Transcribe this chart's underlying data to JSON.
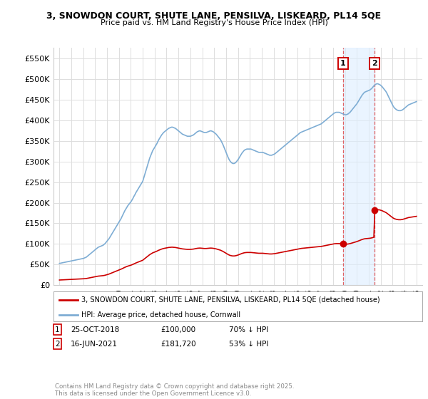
{
  "title_line1": "3, SNOWDON COURT, SHUTE LANE, PENSILVA, LISKEARD, PL14 5QE",
  "title_line2": "Price paid vs. HM Land Registry's House Price Index (HPI)",
  "background_color": "#ffffff",
  "plot_bg_color": "#ffffff",
  "grid_color": "#dddddd",
  "ylim": [
    0,
    575000
  ],
  "yticks": [
    0,
    50000,
    100000,
    150000,
    200000,
    250000,
    300000,
    350000,
    400000,
    450000,
    500000,
    550000
  ],
  "ytick_labels": [
    "£0",
    "£50K",
    "£100K",
    "£150K",
    "£200K",
    "£250K",
    "£300K",
    "£350K",
    "£400K",
    "£450K",
    "£500K",
    "£550K"
  ],
  "hpi_color": "#7eadd4",
  "sale_color": "#cc0000",
  "marker_color": "#cc0000",
  "vline_color": "#e06060",
  "vspan_color": "#ddeeff",
  "legend_label_sale": "3, SNOWDON COURT, SHUTE LANE, PENSILVA, LISKEARD, PL14 5QE (detached house)",
  "legend_label_hpi": "HPI: Average price, detached house, Cornwall",
  "sale1_date_num": 2018.82,
  "sale1_price": 100000,
  "sale2_date_num": 2021.46,
  "sale2_price": 181720,
  "copyright": "Contains HM Land Registry data © Crown copyright and database right 2025.\nThis data is licensed under the Open Government Licence v3.0.",
  "hpi_x": [
    1995.0,
    1995.083,
    1995.167,
    1995.25,
    1995.333,
    1995.417,
    1995.5,
    1995.583,
    1995.667,
    1995.75,
    1995.833,
    1995.917,
    1996.0,
    1996.083,
    1996.167,
    1996.25,
    1996.333,
    1996.417,
    1996.5,
    1996.583,
    1996.667,
    1996.75,
    1996.833,
    1996.917,
    1997.0,
    1997.083,
    1997.167,
    1997.25,
    1997.333,
    1997.417,
    1997.5,
    1997.583,
    1997.667,
    1997.75,
    1997.833,
    1997.917,
    1998.0,
    1998.083,
    1998.167,
    1998.25,
    1998.333,
    1998.417,
    1998.5,
    1998.583,
    1998.667,
    1998.75,
    1998.833,
    1998.917,
    1999.0,
    1999.083,
    1999.167,
    1999.25,
    1999.333,
    1999.417,
    1999.5,
    1999.583,
    1999.667,
    1999.75,
    1999.833,
    1999.917,
    2000.0,
    2000.083,
    2000.167,
    2000.25,
    2000.333,
    2000.417,
    2000.5,
    2000.583,
    2000.667,
    2000.75,
    2000.833,
    2000.917,
    2001.0,
    2001.083,
    2001.167,
    2001.25,
    2001.333,
    2001.417,
    2001.5,
    2001.583,
    2001.667,
    2001.75,
    2001.833,
    2001.917,
    2002.0,
    2002.083,
    2002.167,
    2002.25,
    2002.333,
    2002.417,
    2002.5,
    2002.583,
    2002.667,
    2002.75,
    2002.833,
    2002.917,
    2003.0,
    2003.083,
    2003.167,
    2003.25,
    2003.333,
    2003.417,
    2003.5,
    2003.583,
    2003.667,
    2003.75,
    2003.833,
    2003.917,
    2004.0,
    2004.083,
    2004.167,
    2004.25,
    2004.333,
    2004.417,
    2004.5,
    2004.583,
    2004.667,
    2004.75,
    2004.833,
    2004.917,
    2005.0,
    2005.083,
    2005.167,
    2005.25,
    2005.333,
    2005.417,
    2005.5,
    2005.583,
    2005.667,
    2005.75,
    2005.833,
    2005.917,
    2006.0,
    2006.083,
    2006.167,
    2006.25,
    2006.333,
    2006.417,
    2006.5,
    2006.583,
    2006.667,
    2006.75,
    2006.833,
    2006.917,
    2007.0,
    2007.083,
    2007.167,
    2007.25,
    2007.333,
    2007.417,
    2007.5,
    2007.583,
    2007.667,
    2007.75,
    2007.833,
    2007.917,
    2008.0,
    2008.083,
    2008.167,
    2008.25,
    2008.333,
    2008.417,
    2008.5,
    2008.583,
    2008.667,
    2008.75,
    2008.833,
    2008.917,
    2009.0,
    2009.083,
    2009.167,
    2009.25,
    2009.333,
    2009.417,
    2009.5,
    2009.583,
    2009.667,
    2009.75,
    2009.833,
    2009.917,
    2010.0,
    2010.083,
    2010.167,
    2010.25,
    2010.333,
    2010.417,
    2010.5,
    2010.583,
    2010.667,
    2010.75,
    2010.833,
    2010.917,
    2011.0,
    2011.083,
    2011.167,
    2011.25,
    2011.333,
    2011.417,
    2011.5,
    2011.583,
    2011.667,
    2011.75,
    2011.833,
    2011.917,
    2012.0,
    2012.083,
    2012.167,
    2012.25,
    2012.333,
    2012.417,
    2012.5,
    2012.583,
    2012.667,
    2012.75,
    2012.833,
    2012.917,
    2013.0,
    2013.083,
    2013.167,
    2013.25,
    2013.333,
    2013.417,
    2013.5,
    2013.583,
    2013.667,
    2013.75,
    2013.833,
    2013.917,
    2014.0,
    2014.083,
    2014.167,
    2014.25,
    2014.333,
    2014.417,
    2014.5,
    2014.583,
    2014.667,
    2014.75,
    2014.833,
    2014.917,
    2015.0,
    2015.083,
    2015.167,
    2015.25,
    2015.333,
    2015.417,
    2015.5,
    2015.583,
    2015.667,
    2015.75,
    2015.833,
    2015.917,
    2016.0,
    2016.083,
    2016.167,
    2016.25,
    2016.333,
    2016.417,
    2016.5,
    2016.583,
    2016.667,
    2016.75,
    2016.833,
    2016.917,
    2017.0,
    2017.083,
    2017.167,
    2017.25,
    2017.333,
    2017.417,
    2017.5,
    2017.583,
    2017.667,
    2017.75,
    2017.833,
    2017.917,
    2018.0,
    2018.083,
    2018.167,
    2018.25,
    2018.333,
    2018.417,
    2018.5,
    2018.583,
    2018.667,
    2018.75,
    2018.833,
    2018.917,
    2019.0,
    2019.083,
    2019.167,
    2019.25,
    2019.333,
    2019.417,
    2019.5,
    2019.583,
    2019.667,
    2019.75,
    2019.833,
    2019.917,
    2020.0,
    2020.083,
    2020.167,
    2020.25,
    2020.333,
    2020.417,
    2020.5,
    2020.583,
    2020.667,
    2020.75,
    2020.833,
    2020.917,
    2021.0,
    2021.083,
    2021.167,
    2021.25,
    2021.333,
    2021.417,
    2021.5,
    2021.583,
    2021.667,
    2021.75,
    2021.833,
    2021.917,
    2022.0,
    2022.083,
    2022.167,
    2022.25,
    2022.333,
    2022.417,
    2022.5,
    2022.583,
    2022.667,
    2022.75,
    2022.833,
    2022.917,
    2023.0,
    2023.083,
    2023.167,
    2023.25,
    2023.333,
    2023.417,
    2023.5,
    2023.583,
    2023.667,
    2023.75,
    2023.833,
    2023.917,
    2024.0,
    2024.083,
    2024.167,
    2024.25,
    2024.333,
    2024.417,
    2024.5,
    2024.583,
    2024.667,
    2024.75,
    2024.833,
    2024.917,
    2025.0
  ],
  "hpi_y": [
    53000,
    53500,
    54000,
    54500,
    55000,
    55500,
    56000,
    56500,
    57000,
    57500,
    58000,
    58500,
    59000,
    59500,
    60000,
    60500,
    61000,
    61500,
    62000,
    62500,
    63000,
    63500,
    64000,
    64500,
    65000,
    66000,
    67000,
    68000,
    70000,
    72000,
    74000,
    76000,
    78000,
    80000,
    82000,
    84000,
    86000,
    88000,
    90000,
    92000,
    93000,
    94000,
    95000,
    96000,
    97000,
    99000,
    101000,
    104000,
    107000,
    110000,
    113000,
    117000,
    121000,
    125000,
    129000,
    133000,
    137000,
    141000,
    145000,
    149000,
    153000,
    157000,
    161000,
    166000,
    171000,
    176000,
    181000,
    185000,
    189000,
    193000,
    196000,
    199000,
    202000,
    206000,
    210000,
    215000,
    219000,
    224000,
    228000,
    232000,
    236000,
    240000,
    244000,
    248000,
    252000,
    260000,
    268000,
    276000,
    284000,
    292000,
    300000,
    308000,
    314000,
    320000,
    326000,
    330000,
    334000,
    338000,
    342000,
    347000,
    352000,
    356000,
    360000,
    364000,
    367000,
    370000,
    372000,
    374000,
    376000,
    378000,
    380000,
    381000,
    382000,
    383000,
    383000,
    382000,
    381000,
    380000,
    378000,
    376000,
    374000,
    372000,
    370000,
    368000,
    366000,
    365000,
    364000,
    363000,
    362000,
    361000,
    361000,
    361000,
    361000,
    362000,
    363000,
    364000,
    366000,
    368000,
    370000,
    372000,
    373000,
    374000,
    374000,
    373000,
    372000,
    371000,
    370000,
    370000,
    370000,
    371000,
    372000,
    373000,
    374000,
    374000,
    373000,
    372000,
    370000,
    368000,
    366000,
    363000,
    360000,
    357000,
    354000,
    350000,
    345000,
    340000,
    334000,
    328000,
    322000,
    316000,
    310000,
    305000,
    301000,
    298000,
    296000,
    295000,
    295000,
    296000,
    298000,
    301000,
    304000,
    308000,
    312000,
    316000,
    320000,
    323000,
    326000,
    328000,
    329000,
    330000,
    330000,
    330000,
    330000,
    330000,
    329000,
    328000,
    327000,
    326000,
    325000,
    324000,
    323000,
    322000,
    322000,
    322000,
    322000,
    322000,
    321000,
    320000,
    319000,
    318000,
    317000,
    316000,
    315000,
    315000,
    315000,
    316000,
    317000,
    318000,
    320000,
    322000,
    324000,
    326000,
    328000,
    330000,
    332000,
    334000,
    336000,
    338000,
    340000,
    342000,
    344000,
    346000,
    348000,
    350000,
    352000,
    354000,
    356000,
    358000,
    360000,
    362000,
    364000,
    366000,
    368000,
    370000,
    371000,
    372000,
    373000,
    374000,
    375000,
    376000,
    377000,
    378000,
    379000,
    380000,
    381000,
    382000,
    383000,
    384000,
    385000,
    386000,
    387000,
    388000,
    389000,
    390000,
    391000,
    393000,
    395000,
    397000,
    399000,
    401000,
    403000,
    405000,
    407000,
    409000,
    411000,
    413000,
    415000,
    417000,
    418000,
    419000,
    419000,
    419000,
    419000,
    418000,
    417000,
    416000,
    415000,
    414000,
    413000,
    413000,
    414000,
    415000,
    417000,
    419000,
    422000,
    425000,
    428000,
    431000,
    434000,
    437000,
    440000,
    444000,
    448000,
    452000,
    456000,
    460000,
    463000,
    466000,
    468000,
    469000,
    470000,
    471000,
    472000,
    473000,
    475000,
    477000,
    480000,
    483000,
    485000,
    487000,
    488000,
    488000,
    487000,
    486000,
    484000,
    482000,
    479000,
    476000,
    473000,
    470000,
    466000,
    461000,
    456000,
    451000,
    446000,
    441000,
    436000,
    432000,
    429000,
    427000,
    425000,
    424000,
    423000,
    423000,
    423000,
    424000,
    425000,
    427000,
    429000,
    431000,
    433000,
    435000,
    437000,
    438000,
    439000,
    440000,
    441000,
    442000,
    443000,
    444000,
    445000
  ],
  "xlim": [
    1994.5,
    2025.5
  ],
  "xticks": [
    1995,
    1996,
    1997,
    1998,
    1999,
    2000,
    2001,
    2002,
    2003,
    2004,
    2005,
    2006,
    2007,
    2008,
    2009,
    2010,
    2011,
    2012,
    2013,
    2014,
    2015,
    2016,
    2017,
    2018,
    2019,
    2020,
    2021,
    2022,
    2023,
    2024,
    2025
  ]
}
